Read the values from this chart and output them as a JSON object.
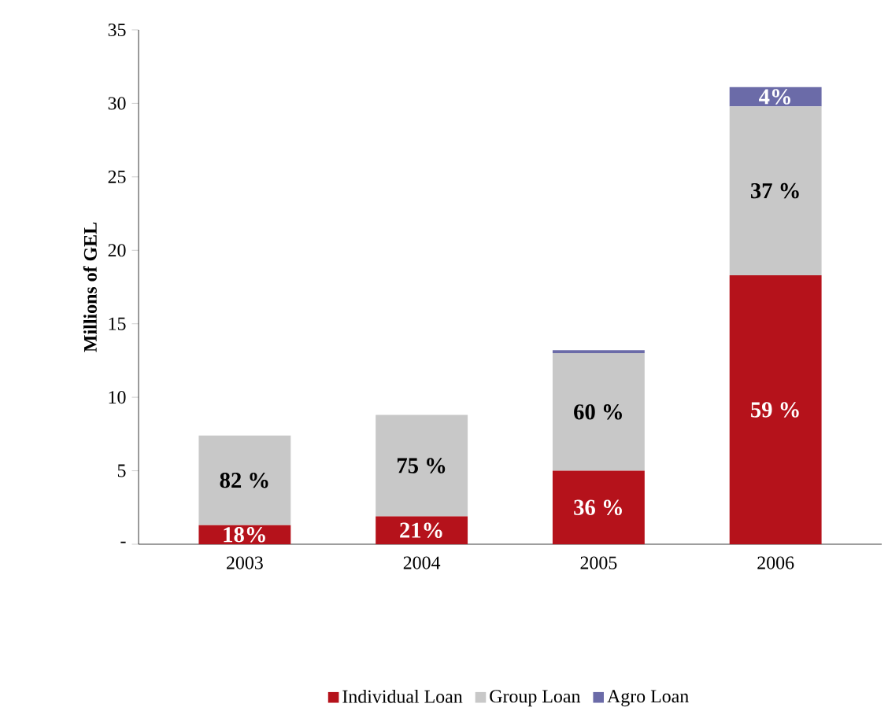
{
  "chart_data": {
    "type": "bar",
    "stacked": true,
    "ylabel": "Millions of GEL",
    "categories": [
      "2003",
      "2004",
      "2005",
      "2006"
    ],
    "series": [
      {
        "name": "Individual Loan",
        "color": "#b5121b",
        "values": [
          1.3,
          1.9,
          5.0,
          18.3
        ]
      },
      {
        "name": "Group Loan",
        "color": "#c8c8c8",
        "values": [
          6.1,
          6.9,
          8.0,
          11.5
        ]
      },
      {
        "name": "Agro Loan",
        "color": "#6b6ba8",
        "values": [
          0,
          0,
          0.2,
          1.3
        ]
      }
    ],
    "annotations": [
      "18%",
      "21%",
      "36 %",
      "59 %",
      "82 %",
      "75 %",
      "60 %",
      "37 %",
      "4%"
    ],
    "ylim": [
      0,
      35
    ],
    "yticks": [
      {
        "value": 0,
        "label": "-"
      },
      5,
      10,
      15,
      20,
      25,
      30,
      35
    ],
    "grid": false,
    "legend": "bottom"
  }
}
